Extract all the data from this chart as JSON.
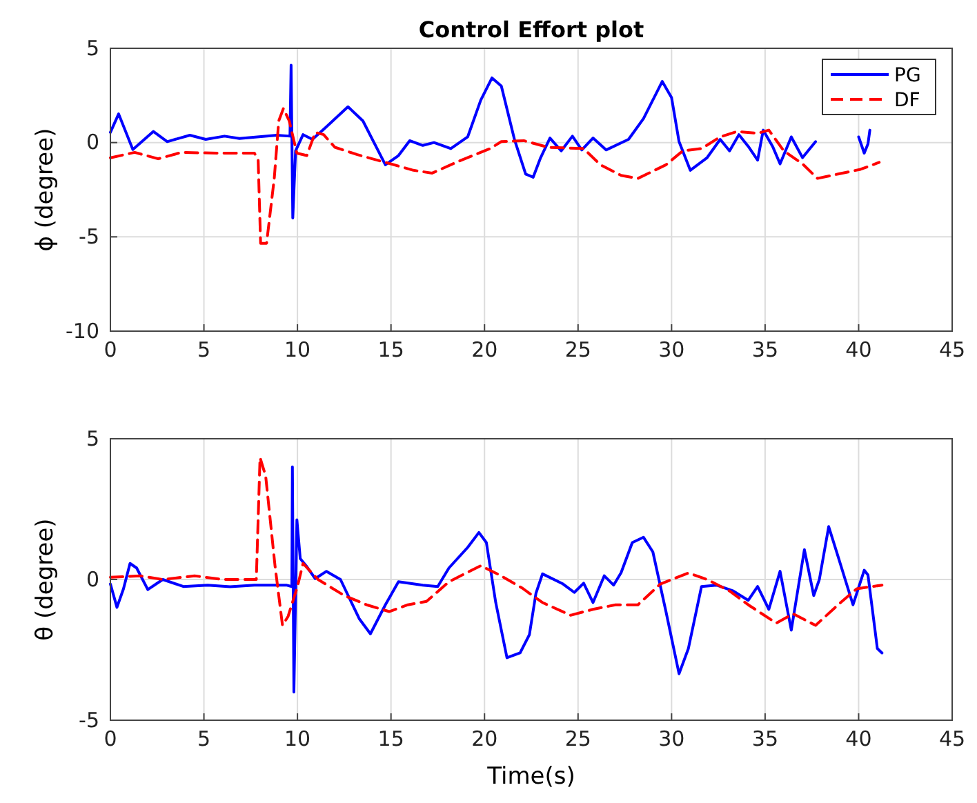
{
  "chart_data": [
    {
      "type": "line",
      "title": "Control Effort plot",
      "ylabel": "ϕ (degree)",
      "xlim": [
        0,
        45
      ],
      "xticks": [
        0,
        5,
        10,
        15,
        20,
        25,
        30,
        35,
        40,
        45
      ],
      "ylim": [
        -10,
        5
      ],
      "yticks": [
        -10,
        -5,
        0,
        5
      ],
      "grid": true,
      "legend": "top right",
      "series": [
        {
          "name": "PG",
          "color": "#0000ff",
          "line_style": "solid",
          "x": [
            0,
            0.44,
            1.2,
            2.3,
            3.04,
            4.25,
            5.1,
            6.1,
            6.9,
            8.9,
            9.6,
            9.66,
            9.75,
            9.9,
            10.3,
            10.8,
            11.5,
            12.7,
            13.5,
            14.7,
            15.4,
            16.0,
            16.7,
            17.3,
            18.2,
            19.1,
            19.8,
            20.4,
            20.9,
            21.6,
            22.2,
            22.6,
            23.0,
            23.5,
            24.1,
            24.7,
            25.2,
            25.8,
            26.5,
            27.7,
            28.5,
            29.5,
            30.0,
            30.4,
            31.0,
            31.9,
            32.6,
            33.1,
            33.6,
            34.1,
            34.6,
            34.9,
            35.4,
            35.8,
            36.4,
            37.0,
            37.7,
            38.8,
            40.0,
            40.3,
            40.5,
            40.6
          ],
          "values": [
            0.54,
            1.52,
            -0.37,
            0.59,
            0.05,
            0.39,
            0.17,
            0.34,
            0.22,
            0.39,
            0.34,
            4.1,
            -4.0,
            -0.44,
            0.42,
            0.17,
            0.79,
            1.9,
            1.15,
            -1.18,
            -0.69,
            0.1,
            -0.15,
            0,
            -0.32,
            0.3,
            2.25,
            3.43,
            3.0,
            0.17,
            -1.67,
            -1.84,
            -0.8,
            0.24,
            -0.44,
            0.34,
            -0.39,
            0.24,
            -0.39,
            0.17,
            1.27,
            3.24,
            2.38,
            0.05,
            -1.47,
            -0.8,
            0.17,
            -0.44,
            0.42,
            -0.2,
            -0.93,
            0.66,
            -0.2,
            -1.13,
            0.3,
            -0.8,
            0.05,
            null,
            0.3,
            -0.56,
            -0.07,
            0.66
          ]
        },
        {
          "name": "DF",
          "color": "#ff0000",
          "line_style": "dashed",
          "x": [
            0,
            1.3,
            2.55,
            3.8,
            5.7,
            7.7,
            7.9,
            8.03,
            8.35,
            8.76,
            9.0,
            9.25,
            9.56,
            9.97,
            10.5,
            10.95,
            11.4,
            12.0,
            13.2,
            14.7,
            16.2,
            17.2,
            18.6,
            20.3,
            20.9,
            22.1,
            23.4,
            25.3,
            26.2,
            27.3,
            28.2,
            29.7,
            30.6,
            31.6,
            32.6,
            33.5,
            34.6,
            35.2,
            36.0,
            37.0,
            37.8,
            38.9,
            40.1,
            41.1
          ],
          "values": [
            -0.81,
            -0.52,
            -0.86,
            -0.52,
            -0.56,
            -0.56,
            -0.93,
            -5.34,
            -5.34,
            -1.9,
            1.15,
            1.81,
            1.15,
            -0.56,
            -0.69,
            0.54,
            0.42,
            -0.25,
            -0.64,
            -1.05,
            -1.47,
            -1.62,
            -1.0,
            -0.32,
            0.05,
            0.1,
            -0.25,
            -0.32,
            -1.18,
            -1.74,
            -1.9,
            -1.18,
            -0.44,
            -0.32,
            0.3,
            0.59,
            0.49,
            0.66,
            -0.44,
            -1.13,
            -1.9,
            -1.67,
            -1.42,
            -1.05
          ]
        }
      ]
    },
    {
      "type": "line",
      "xlabel": "Time(s)",
      "ylabel": "θ (degree)",
      "xlim": [
        0,
        45
      ],
      "xticks": [
        0,
        5,
        10,
        15,
        20,
        25,
        30,
        35,
        40,
        45
      ],
      "ylim": [
        -5,
        5
      ],
      "yticks": [
        -5,
        0,
        5
      ],
      "grid": true,
      "series": [
        {
          "color": "#0000ff",
          "line_style": "solid",
          "x": [
            0,
            0.35,
            0.7,
            1.05,
            1.4,
            2.0,
            2.8,
            3.9,
            5.2,
            6.4,
            7.7,
            9.4,
            9.7,
            9.73,
            9.81,
            9.97,
            10.15,
            10.46,
            10.95,
            11.55,
            12.3,
            13.3,
            13.9,
            14.7,
            15.4,
            16.7,
            17.5,
            18.1,
            19.1,
            19.7,
            20.1,
            20.6,
            21.2,
            21.9,
            22.4,
            22.75,
            23.1,
            24.2,
            24.8,
            25.3,
            25.8,
            26.4,
            26.9,
            27.3,
            27.9,
            28.5,
            29.0,
            29.7,
            30.4,
            30.9,
            31.6,
            32.4,
            33.3,
            34.1,
            34.6,
            35.2,
            35.8,
            36.4,
            37.1,
            37.6,
            37.9,
            38.4,
            38.9,
            39.7,
            40.3,
            40.5,
            41.0,
            41.25
          ],
          "values": [
            -0.16,
            -0.99,
            -0.33,
            0.57,
            0.41,
            -0.36,
            0,
            -0.25,
            -0.2,
            -0.26,
            -0.2,
            -0.2,
            -0.25,
            4.0,
            -4.0,
            2.12,
            0.74,
            0.49,
            0.03,
            0.29,
            0,
            -1.39,
            -1.93,
            -0.9,
            -0.08,
            -0.2,
            -0.25,
            0.41,
            1.14,
            1.67,
            1.31,
            -0.82,
            -2.78,
            -2.61,
            -1.96,
            -0.49,
            0.2,
            -0.16,
            -0.46,
            -0.13,
            -0.82,
            0.13,
            -0.2,
            0.24,
            1.31,
            1.5,
            0.98,
            -1.14,
            -3.35,
            -2.45,
            -0.25,
            -0.2,
            -0.41,
            -0.74,
            -0.25,
            -1.06,
            0.29,
            -1.8,
            1.06,
            -0.57,
            0,
            1.88,
            0.82,
            -0.9,
            0.33,
            0.16,
            -2.45,
            -2.61
          ]
        },
        {
          "color": "#ff0000",
          "line_style": "dashed",
          "x": [
            0,
            1.6,
            2.8,
            4.5,
            6.0,
            7.8,
            8.0,
            8.3,
            8.8,
            9.2,
            9.5,
            10.0,
            10.3,
            11.1,
            12.5,
            13.7,
            14.9,
            15.9,
            16.9,
            18.1,
            19.8,
            20.8,
            22.0,
            23.1,
            24.6,
            25.8,
            27.0,
            28.2,
            29.4,
            30.9,
            31.9,
            33.1,
            34.1,
            35.6,
            36.5,
            37.7,
            38.9,
            39.9,
            41.25
          ],
          "values": [
            0.08,
            0.13,
            0,
            0.13,
            0,
            0,
            4.33,
            3.68,
            0.49,
            -1.63,
            -1.31,
            -0.25,
            0.57,
            0,
            -0.57,
            -0.9,
            -1.14,
            -0.9,
            -0.78,
            -0.08,
            0.49,
            0.16,
            -0.3,
            -0.82,
            -1.27,
            -1.06,
            -0.9,
            -0.9,
            -0.16,
            0.23,
            0,
            -0.41,
            -0.9,
            -1.55,
            -1.22,
            -1.63,
            -0.9,
            -0.33,
            -0.2
          ]
        }
      ]
    }
  ]
}
